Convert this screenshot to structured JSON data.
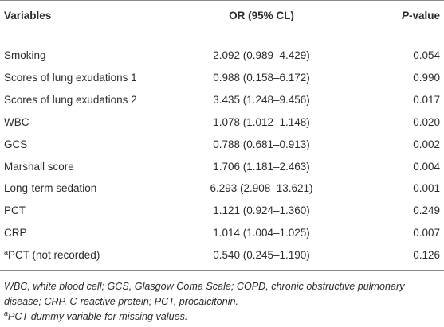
{
  "table": {
    "header": [
      "Variables",
      "OR (95% CL)",
      "P-value"
    ],
    "rows": [
      [
        "Smoking",
        "2.092 (0.989–4.429)",
        "0.054"
      ],
      [
        "Scores of lung exudations 1",
        "0.988 (0.158–6.172)",
        "0.990"
      ],
      [
        "Scores of lung exudations 2",
        "3.435 (1.248–9.456)",
        "0.017"
      ],
      [
        "WBC",
        "1.078 (1.012–1.148)",
        "0.020"
      ],
      [
        "GCS",
        "0.788 (0.681–0.913)",
        "0.002"
      ],
      [
        "Marshall score",
        "1.706 (1.181–2.463)",
        "0.004"
      ],
      [
        "Long-term sedation",
        "6.293 (2.908–13.621)",
        "0.001"
      ],
      [
        "PCT",
        "1.121 (0.924–1.360)",
        "0.249"
      ],
      [
        "CRP",
        "1.014 (1.004–1.025)",
        "0.007"
      ],
      [
        {
          "sup": "a",
          "text": "PCT (not recorded)"
        },
        "0.540 (0.245–1.190)",
        "0.126"
      ]
    ],
    "notes": [
      {
        "text": "WBC, white blood cell; GCS, Glasgow Coma Scale; COPD, chronic obstructive pulmonary disease; CRP, C-reactive protein; PCT, procalcitonin."
      },
      {
        "sup": "a",
        "text": "PCT dummy variable for missing values."
      }
    ]
  }
}
